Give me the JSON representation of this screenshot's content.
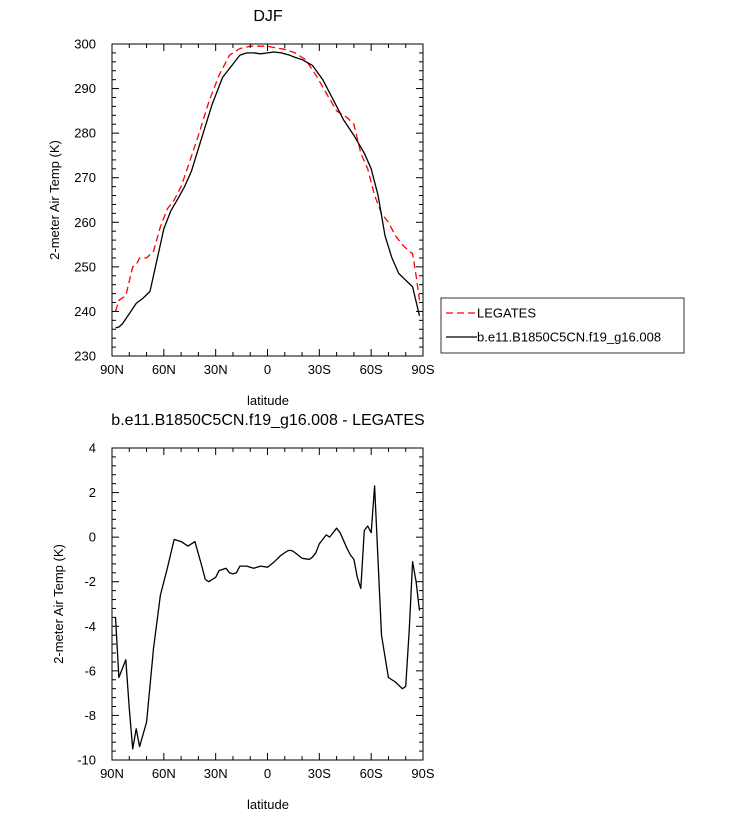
{
  "chart_data": [
    {
      "type": "line",
      "title": "DJF",
      "xlabel": "latitude",
      "ylabel": "2-meter Air Temp (K)",
      "xlim": [
        90,
        -90
      ],
      "ylim": [
        230,
        300
      ],
      "x_ticks": [
        90,
        60,
        30,
        0,
        -30,
        -60,
        -90
      ],
      "x_tick_labels": [
        "90N",
        "60N",
        "30N",
        "0",
        "30S",
        "60S",
        "90S"
      ],
      "y_ticks": [
        230,
        240,
        250,
        260,
        270,
        280,
        290,
        300
      ],
      "y_tick_labels": [
        "230",
        "240",
        "250",
        "260",
        "270",
        "280",
        "290",
        "300"
      ],
      "legend": "right",
      "series": [
        {
          "name": "LEGATES",
          "color": "#ff0000",
          "dash": "dashed",
          "x": [
            88,
            86,
            82,
            78,
            76,
            74,
            70,
            66,
            62,
            58,
            54,
            50,
            46,
            40,
            34,
            28,
            22,
            16,
            10,
            4,
            0,
            -4,
            -10,
            -16,
            -22,
            -28,
            -34,
            -40,
            -46,
            -50,
            -54,
            -58,
            -62,
            -66,
            -70,
            -74,
            -78,
            -82,
            -84,
            -86,
            -88
          ],
          "values": [
            240,
            242.5,
            243.5,
            250,
            250.5,
            252,
            252,
            253.5,
            259,
            263,
            265,
            268,
            272.5,
            279.5,
            287,
            293,
            297.5,
            299,
            299.5,
            299.5,
            299.5,
            299.2,
            298.8,
            298,
            296.5,
            293,
            289,
            285,
            283.5,
            282,
            275.5,
            272,
            266,
            262,
            260,
            257,
            255,
            253.5,
            253,
            248,
            242.5
          ]
        },
        {
          "name": "b.e11.B1850C5CN.f19_g16.008",
          "color": "#000000",
          "dash": "solid",
          "x": [
            88,
            86,
            84,
            80,
            76,
            72,
            68,
            64,
            60,
            56,
            52,
            48,
            44,
            38,
            32,
            26,
            20,
            16,
            12,
            8,
            4,
            0,
            -4,
            -8,
            -12,
            -16,
            -20,
            -26,
            -32,
            -38,
            -44,
            -50,
            -56,
            -60,
            -64,
            -68,
            -72,
            -76,
            -80,
            -84,
            -88
          ],
          "values": [
            236.3,
            236.5,
            237.2,
            239.5,
            241.8,
            243,
            244.5,
            251.5,
            258.5,
            262.5,
            265.2,
            268,
            271.5,
            279,
            286.5,
            292.5,
            295.5,
            297.5,
            298,
            298,
            297.8,
            298,
            298.2,
            298,
            297.6,
            297,
            296.5,
            295.2,
            292,
            287.5,
            283,
            279.5,
            275.5,
            272,
            266,
            257,
            252,
            248.5,
            247,
            245.5,
            239
          ]
        }
      ]
    },
    {
      "type": "line",
      "title": "b.e11.B1850C5CN.f19_g16.008 - LEGATES",
      "xlabel": "latitude",
      "ylabel": "2-meter Air Temp (K)",
      "xlim": [
        90,
        -90
      ],
      "ylim": [
        -10,
        4
      ],
      "x_ticks": [
        90,
        60,
        30,
        0,
        -30,
        -60,
        -90
      ],
      "x_tick_labels": [
        "90N",
        "60N",
        "30N",
        "0",
        "30S",
        "60S",
        "90S"
      ],
      "y_ticks": [
        -10,
        -8,
        -6,
        -4,
        -2,
        0,
        2,
        4
      ],
      "y_tick_labels": [
        "-10",
        "-8",
        "-6",
        "-4",
        "-2",
        "0",
        "2",
        "4"
      ],
      "legend": "none",
      "series": [
        {
          "color": "#000000",
          "dash": "solid",
          "x": [
            88,
            86,
            82,
            80,
            78,
            76,
            74,
            70,
            66,
            62,
            58,
            54,
            50,
            46,
            44,
            42,
            38,
            36,
            34,
            32,
            30,
            28,
            24,
            22,
            20,
            18,
            16,
            12,
            10,
            8,
            4,
            0,
            -4,
            -8,
            -12,
            -14,
            -16,
            -20,
            -24,
            -26,
            -28,
            -30,
            -32,
            -34,
            -36,
            -40,
            -42,
            -46,
            -48,
            -50,
            -52,
            -54,
            -56,
            -58,
            -60,
            -62,
            -66,
            -70,
            -74,
            -78,
            -80,
            -82,
            -84,
            -86,
            -88
          ],
          "values": [
            -3.6,
            -6.3,
            -5.5,
            -7.7,
            -9.5,
            -8.6,
            -9.4,
            -8.3,
            -5,
            -2.6,
            -1.4,
            -0.1,
            -0.2,
            -0.4,
            -0.3,
            -0.2,
            -1.3,
            -1.9,
            -2.0,
            -1.9,
            -1.8,
            -1.5,
            -1.4,
            -1.6,
            -1.65,
            -1.6,
            -1.3,
            -1.3,
            -1.35,
            -1.4,
            -1.3,
            -1.35,
            -1.1,
            -0.8,
            -0.6,
            -0.6,
            -0.7,
            -0.95,
            -1.0,
            -0.9,
            -0.7,
            -0.3,
            -0.1,
            0.1,
            0.0,
            0.4,
            0.2,
            -0.5,
            -0.8,
            -1.0,
            -1.8,
            -2.3,
            0.3,
            0.5,
            0.2,
            2.3,
            -4.4,
            -6.3,
            -6.5,
            -6.8,
            -6.7,
            -4.2,
            -1.1,
            -2.0,
            -3.3
          ]
        }
      ]
    }
  ]
}
